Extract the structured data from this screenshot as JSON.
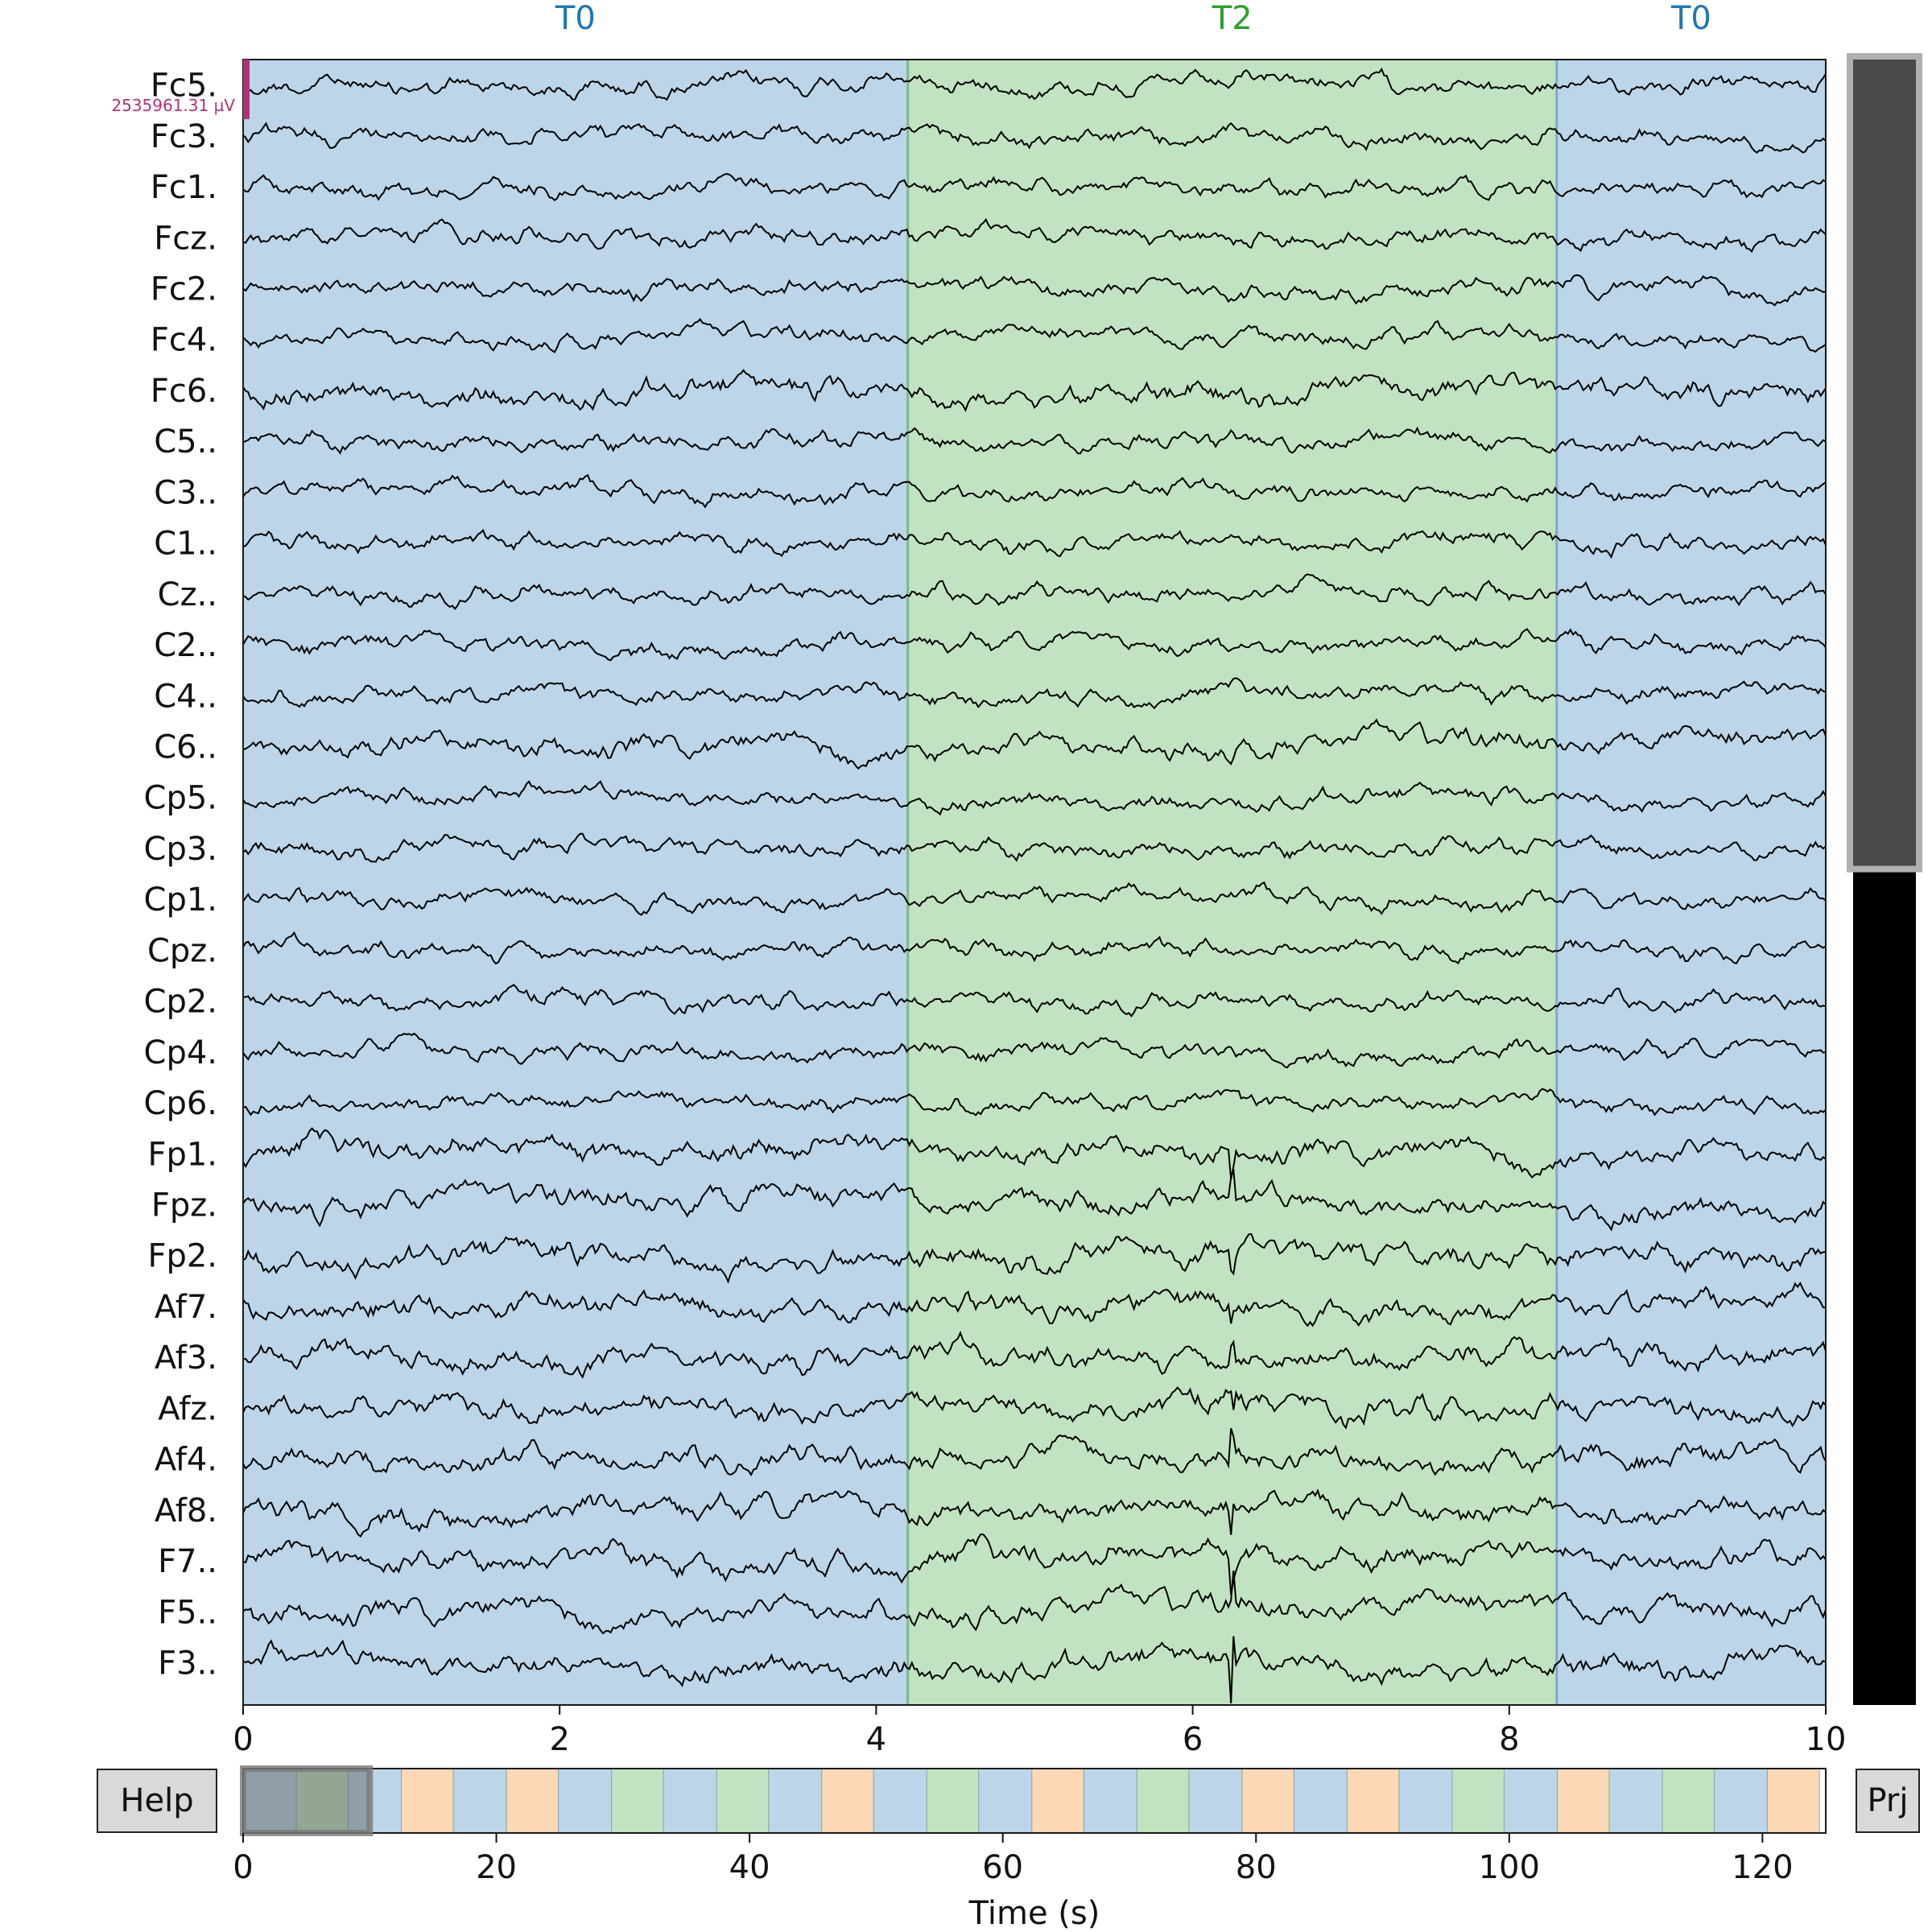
{
  "window": {
    "title": ""
  },
  "buttons": {
    "help_label": "Help",
    "proj_label": "Prj"
  },
  "scale_bar": {
    "label": "2535961.31 µV",
    "color": "#b5307a"
  },
  "colors": {
    "t0_fill": "#bcd5e8",
    "t0_text": "#1f77b4",
    "t2_fill": "#c2e3c2",
    "t2_text": "#2ca02c",
    "t1_fill": "#fdd8b4",
    "trace": "#000000",
    "scrollbar_thumb": "#4a4a4a",
    "scrollbar_track": "#000000"
  },
  "chart_data": {
    "type": "line",
    "title": "",
    "xlabel": "",
    "ylabel": "",
    "xlim": [
      0,
      10
    ],
    "x_ticks": [
      "0",
      "2",
      "4",
      "6",
      "8",
      "10"
    ],
    "channels": [
      "Fc5.",
      "Fc3.",
      "Fc1.",
      "Fcz.",
      "Fc2.",
      "Fc4.",
      "Fc6.",
      "C5..",
      "C3..",
      "C1..",
      "Cz..",
      "C2..",
      "C4..",
      "C6..",
      "Cp5.",
      "Cp3.",
      "Cp1.",
      "Cpz.",
      "Cp2.",
      "Cp4.",
      "Cp6.",
      "Fp1.",
      "Fpz.",
      "Fp2.",
      "Af7.",
      "Af3.",
      "Afz.",
      "Af4.",
      "Af8.",
      "F7..",
      "F5..",
      "F3.."
    ],
    "annotations": [
      {
        "label": "T0",
        "start": 0.0,
        "end": 4.2
      },
      {
        "label": "T2",
        "start": 4.2,
        "end": 8.3
      },
      {
        "label": "T0",
        "start": 8.3,
        "end": 10.0
      }
    ],
    "grid": false
  },
  "overview": {
    "xlabel": "Time (s)",
    "xlim": [
      0,
      125
    ],
    "x_ticks": [
      "0",
      "20",
      "40",
      "60",
      "80",
      "100",
      "120"
    ],
    "segments": [
      {
        "label": "T0",
        "start": 0.0,
        "end": 4.2
      },
      {
        "label": "T2",
        "start": 4.2,
        "end": 8.3
      },
      {
        "label": "T0",
        "start": 8.3,
        "end": 12.5
      },
      {
        "label": "T1",
        "start": 12.5,
        "end": 16.6
      },
      {
        "label": "T0",
        "start": 16.6,
        "end": 20.8
      },
      {
        "label": "T1",
        "start": 20.8,
        "end": 24.9
      },
      {
        "label": "T0",
        "start": 24.9,
        "end": 29.1
      },
      {
        "label": "T2",
        "start": 29.1,
        "end": 33.2
      },
      {
        "label": "T0",
        "start": 33.2,
        "end": 37.4
      },
      {
        "label": "T2",
        "start": 37.4,
        "end": 41.5
      },
      {
        "label": "T0",
        "start": 41.5,
        "end": 45.7
      },
      {
        "label": "T1",
        "start": 45.7,
        "end": 49.8
      },
      {
        "label": "T0",
        "start": 49.8,
        "end": 54.0
      },
      {
        "label": "T2",
        "start": 54.0,
        "end": 58.1
      },
      {
        "label": "T0",
        "start": 58.1,
        "end": 62.3
      },
      {
        "label": "T1",
        "start": 62.3,
        "end": 66.4
      },
      {
        "label": "T0",
        "start": 66.4,
        "end": 70.6
      },
      {
        "label": "T2",
        "start": 70.6,
        "end": 74.7
      },
      {
        "label": "T0",
        "start": 74.7,
        "end": 78.9
      },
      {
        "label": "T1",
        "start": 78.9,
        "end": 83.0
      },
      {
        "label": "T0",
        "start": 83.0,
        "end": 87.2
      },
      {
        "label": "T1",
        "start": 87.2,
        "end": 91.3
      },
      {
        "label": "T0",
        "start": 91.3,
        "end": 95.5
      },
      {
        "label": "T2",
        "start": 95.5,
        "end": 99.6
      },
      {
        "label": "T0",
        "start": 99.6,
        "end": 103.8
      },
      {
        "label": "T1",
        "start": 103.8,
        "end": 107.9
      },
      {
        "label": "T0",
        "start": 107.9,
        "end": 112.1
      },
      {
        "label": "T2",
        "start": 112.1,
        "end": 116.2
      },
      {
        "label": "T0",
        "start": 116.2,
        "end": 120.4
      },
      {
        "label": "T1",
        "start": 120.4,
        "end": 124.5
      }
    ],
    "view_window": {
      "start": 0,
      "end": 10
    }
  },
  "vertical_scroll": {
    "visible_fraction": 0.49
  }
}
